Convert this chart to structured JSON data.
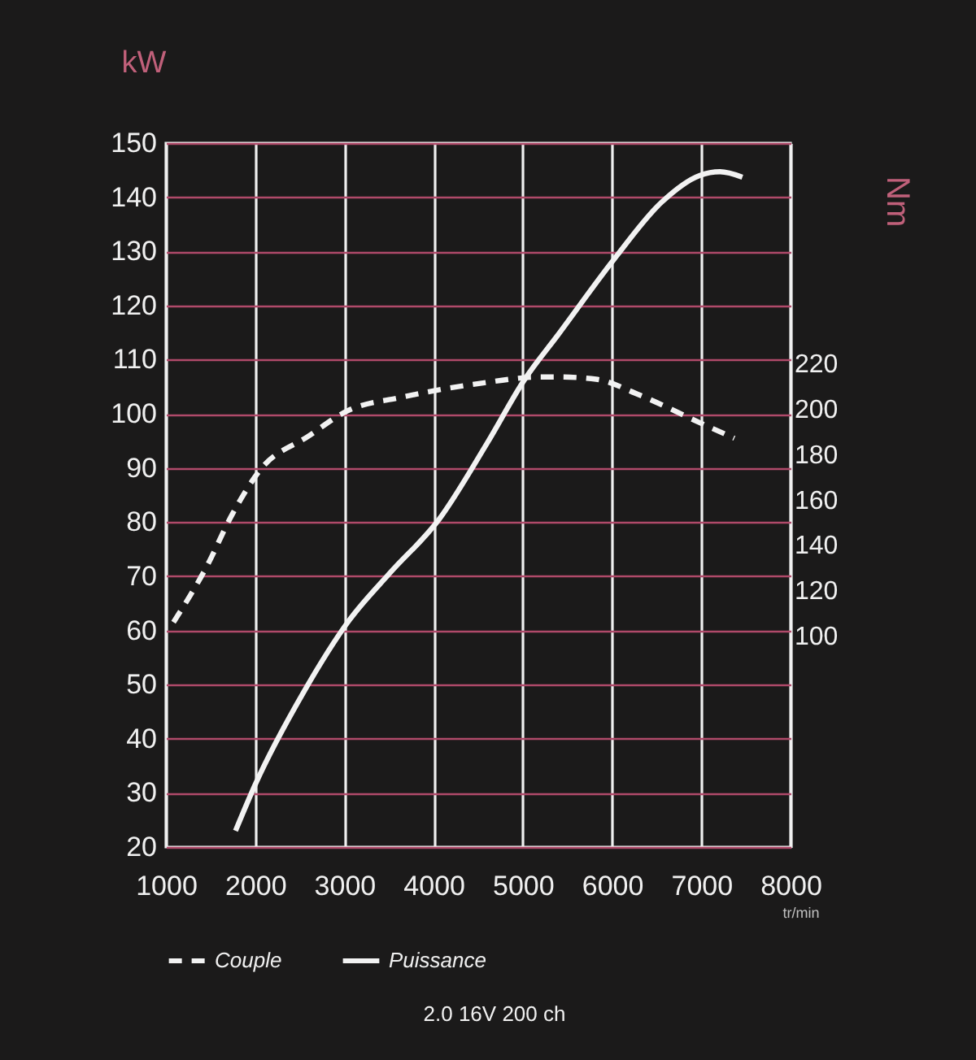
{
  "chart_data": {
    "type": "line",
    "title": "2.0 16V 200 ch",
    "xlabel": "tr/min",
    "ylabel": "kW",
    "y2label": "Nm",
    "xlim": [
      1000,
      8000
    ],
    "xticks": [
      1000,
      2000,
      3000,
      4000,
      5000,
      6000,
      7000,
      8000
    ],
    "ylim": [
      20,
      150
    ],
    "yticks": [
      20,
      30,
      40,
      50,
      60,
      70,
      80,
      90,
      100,
      110,
      120,
      130,
      140,
      150
    ],
    "y2lim": [
      7,
      317
    ],
    "y2ticks": [
      100,
      120,
      140,
      160,
      180,
      200,
      220
    ],
    "grid": true,
    "legend": "bottom",
    "marker": "none",
    "series": [
      {
        "name": "Couple",
        "color": "#f2f2f2",
        "axis": "y2",
        "line_style": "dashed",
        "x": [
          1085,
          1450,
          1750,
          2055,
          2600,
          3030,
          3635,
          4490,
          5210,
          5400,
          5820,
          6310,
          6975,
          7370
        ],
        "values": [
          106,
          130,
          154,
          173,
          188,
          199,
          205,
          211,
          214,
          214,
          213,
          206,
          194,
          187
        ]
      },
      {
        "name": "Puissance",
        "color": "#f2f2f2",
        "line_style": "solid",
        "x": [
          1780,
          2000,
          2540,
          3060,
          3510,
          4060,
          4600,
          5030,
          5390,
          6020,
          6550,
          6980,
          7210,
          7460
        ],
        "values": [
          23,
          31.5,
          48.5,
          62,
          70.6,
          80.5,
          94.6,
          106.6,
          114.5,
          128.5,
          139,
          144,
          144.7,
          143.7
        ]
      }
    ]
  }
}
